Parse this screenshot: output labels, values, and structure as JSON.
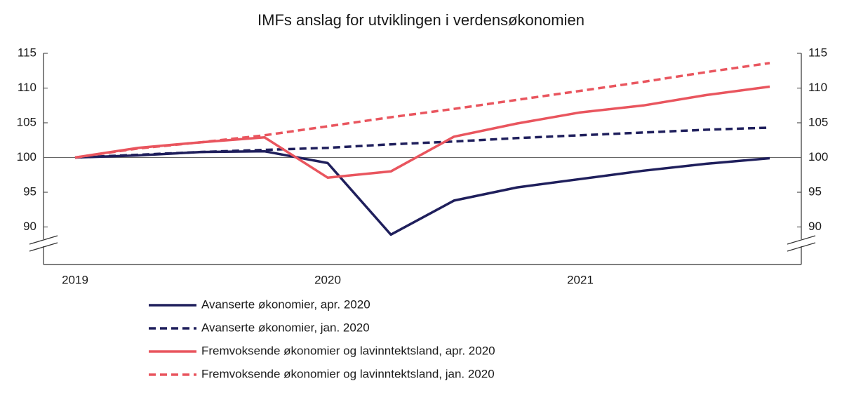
{
  "chart_data": {
    "type": "line",
    "title": "IMFs anslag for utviklingen i verdensøkonomien",
    "categories": [
      "2019",
      null,
      null,
      null,
      "2020",
      null,
      null,
      null,
      "2021",
      null,
      null,
      null
    ],
    "series": [
      {
        "name": "Avanserte økonomier, apr. 2020",
        "color": "#1f1f5c",
        "dashed": false,
        "values": [
          100,
          100.3,
          100.8,
          100.9,
          99.2,
          88.9,
          93.8,
          95.7,
          96.9,
          98.1,
          99.1,
          99.9
        ]
      },
      {
        "name": "Avanserte økonomier, jan. 2020",
        "color": "#1f1f5c",
        "dashed": true,
        "values": [
          100,
          100.4,
          100.8,
          101.1,
          101.4,
          101.9,
          102.3,
          102.8,
          103.2,
          103.6,
          104.0,
          104.3
        ]
      },
      {
        "name": "Fremvoksende økonomier og lavinntektsland, apr. 2020",
        "color": "#e9555e",
        "dashed": false,
        "values": [
          100,
          101.4,
          102.2,
          102.9,
          97.1,
          98.0,
          103.0,
          104.9,
          106.5,
          107.5,
          109.0,
          110.2
        ]
      },
      {
        "name": "Fremvoksende økonomier og lavinntektsland, jan. 2020",
        "color": "#e9555e",
        "dashed": true,
        "values": [
          100,
          101.3,
          102.2,
          103.2,
          104.5,
          105.8,
          107.0,
          108.3,
          109.6,
          110.9,
          112.3,
          113.6
        ]
      }
    ],
    "ylim": [
      84.6,
      115
    ],
    "yticks": [
      90,
      95,
      100,
      105,
      110,
      115
    ],
    "y2lim": [
      84.6,
      115
    ],
    "y2ticks": [
      90,
      95,
      100,
      105,
      110,
      115
    ],
    "reference_line": 100,
    "legend": "bottom"
  }
}
